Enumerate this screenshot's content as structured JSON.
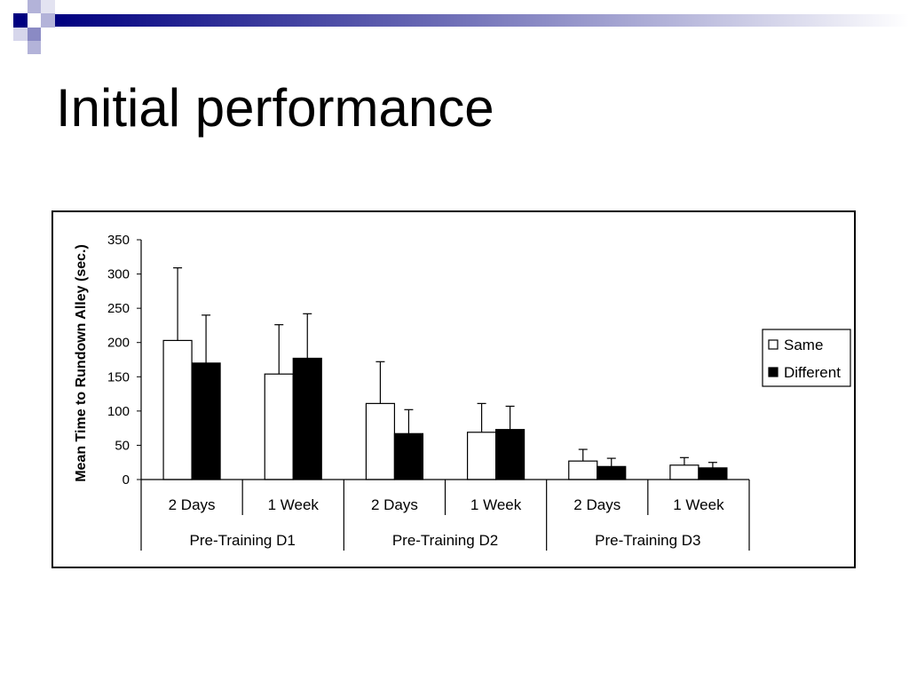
{
  "slide": {
    "title": "Initial performance"
  },
  "colors": {
    "header_dark": "#000080",
    "header_mid": "#6666b3",
    "header_light": "#b3b3d9",
    "same_fill": "#ffffff",
    "different_fill": "#000000"
  },
  "chart_data": {
    "type": "bar",
    "ylabel": "Mean Time to Rundown Alley (sec.)",
    "ylim": [
      0,
      350
    ],
    "yticks": [
      0,
      50,
      100,
      150,
      200,
      250,
      300,
      350
    ],
    "categories": [
      "2 Days",
      "1 Week",
      "2 Days",
      "1 Week",
      "2 Days",
      "1 Week"
    ],
    "groups": [
      "Pre-Training D1",
      "Pre-Training D2",
      "Pre-Training D3"
    ],
    "series": [
      {
        "name": "Same",
        "values": [
          203,
          154,
          111,
          69,
          27,
          21
        ],
        "error_upper": [
          309,
          226,
          172,
          111,
          44,
          32
        ]
      },
      {
        "name": "Different",
        "values": [
          170,
          177,
          67,
          73,
          19,
          17
        ],
        "error_upper": [
          240,
          242,
          102,
          107,
          31,
          25
        ]
      }
    ],
    "legend_position": "right",
    "grid": false
  }
}
